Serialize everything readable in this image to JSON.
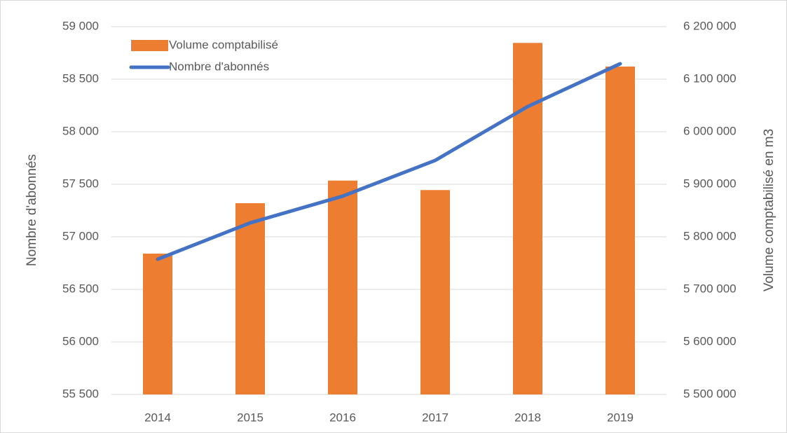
{
  "chart_data": {
    "type": "bar",
    "categories": [
      "2014",
      "2015",
      "2016",
      "2017",
      "2018",
      "2019"
    ],
    "ylabel": "Nombre d'abonnés",
    "y2label": "Volume comptabilisé en m3",
    "ylim": [
      55500,
      59000
    ],
    "yticks": [
      {
        "value": 55500,
        "label": "55 500"
      },
      {
        "value": 56000,
        "label": "56 000"
      },
      {
        "value": 56500,
        "label": "56 500"
      },
      {
        "value": 57000,
        "label": "57 000"
      },
      {
        "value": 57500,
        "label": "57 500"
      },
      {
        "value": 58000,
        "label": "58 000"
      },
      {
        "value": 58500,
        "label": "58 500"
      },
      {
        "value": 59000,
        "label": "59 000"
      }
    ],
    "y2lim": [
      5500000,
      6200000
    ],
    "y2ticks": [
      {
        "value": 5500000,
        "label": "5 500 000"
      },
      {
        "value": 5600000,
        "label": "5 600 000"
      },
      {
        "value": 5700000,
        "label": "5 700 000"
      },
      {
        "value": 5800000,
        "label": "5 800 000"
      },
      {
        "value": 5900000,
        "label": "5 900 000"
      },
      {
        "value": 6000000,
        "label": "6 000 000"
      },
      {
        "value": 6100000,
        "label": "6 100 000"
      },
      {
        "value": 6200000,
        "label": "6 200 000"
      }
    ],
    "grid": true,
    "legend": "top-left",
    "series": [
      {
        "name": "Volume comptabilisé",
        "type": "bar",
        "axis": "y2",
        "color": "#ed7d31",
        "values": [
          5768000,
          5864000,
          5907000,
          5889000,
          6169000,
          6124000
        ]
      },
      {
        "name": "Nombre d'abonnés",
        "type": "line",
        "axis": "y",
        "color": "#4472c4",
        "values": [
          56787,
          57133,
          57387,
          57727,
          58240,
          58647
        ]
      }
    ]
  }
}
